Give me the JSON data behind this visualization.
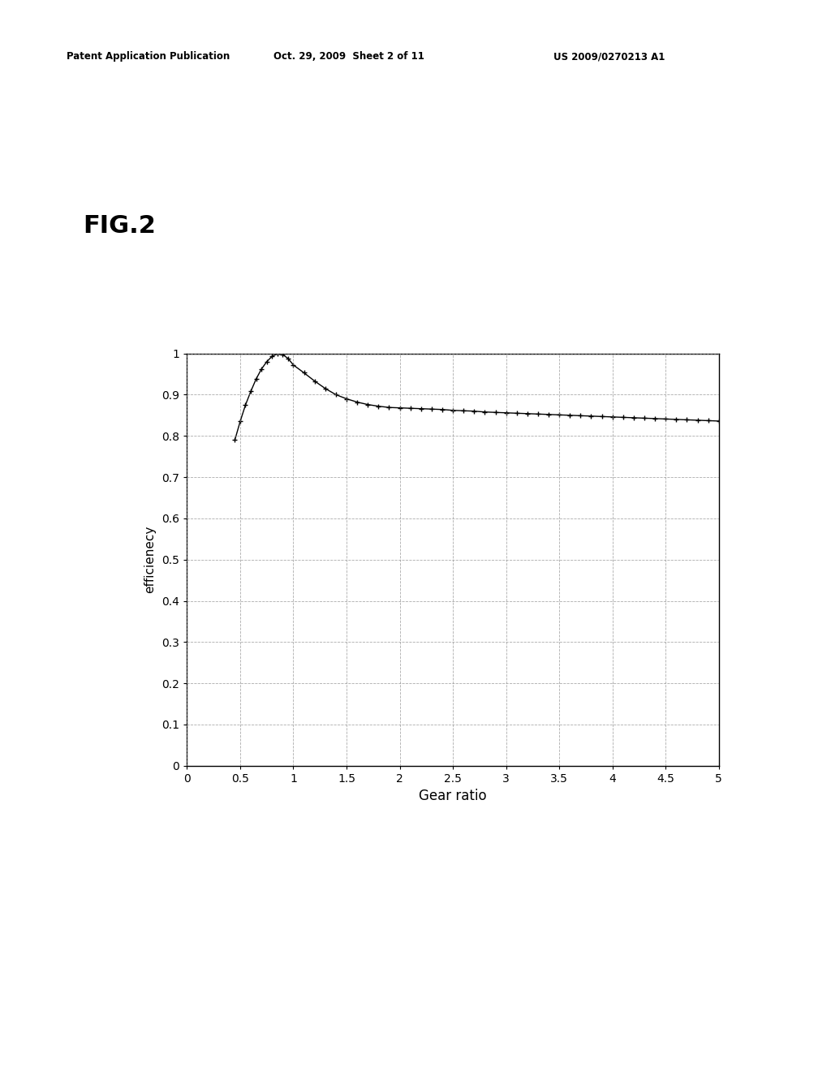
{
  "title_fig": "FIG.2",
  "header_left": "Patent Application Publication",
  "header_center": "Oct. 29, 2009  Sheet 2 of 11",
  "header_right": "US 2009/0270213 A1",
  "xlabel": "Gear ratio",
  "ylabel": "efficienecy",
  "xlim": [
    0,
    5
  ],
  "ylim": [
    0,
    1
  ],
  "xticks": [
    0,
    0.5,
    1,
    1.5,
    2,
    2.5,
    3,
    3.5,
    4,
    4.5,
    5
  ],
  "yticks": [
    0,
    0.1,
    0.2,
    0.3,
    0.4,
    0.5,
    0.6,
    0.7,
    0.8,
    0.9,
    1
  ],
  "background_color": "#ffffff",
  "line_color": "#000000",
  "grid_color": "#888888",
  "gear_ratios": [
    0.45,
    0.5,
    0.55,
    0.6,
    0.65,
    0.7,
    0.75,
    0.8,
    0.85,
    0.9,
    0.95,
    1.0,
    1.1,
    1.2,
    1.3,
    1.4,
    1.5,
    1.6,
    1.7,
    1.8,
    1.9,
    2.0,
    2.1,
    2.2,
    2.3,
    2.4,
    2.5,
    2.6,
    2.7,
    2.8,
    2.9,
    3.0,
    3.1,
    3.2,
    3.3,
    3.4,
    3.5,
    3.6,
    3.7,
    3.8,
    3.9,
    4.0,
    4.1,
    4.2,
    4.3,
    4.4,
    4.5,
    4.6,
    4.7,
    4.8,
    4.9,
    5.0
  ],
  "efficiency": [
    0.79,
    0.835,
    0.875,
    0.908,
    0.938,
    0.962,
    0.98,
    0.993,
    0.999,
    0.997,
    0.988,
    0.972,
    0.953,
    0.933,
    0.915,
    0.9,
    0.89,
    0.882,
    0.876,
    0.872,
    0.869,
    0.868,
    0.867,
    0.866,
    0.865,
    0.864,
    0.862,
    0.861,
    0.86,
    0.858,
    0.857,
    0.856,
    0.855,
    0.854,
    0.853,
    0.852,
    0.851,
    0.85,
    0.849,
    0.848,
    0.847,
    0.846,
    0.845,
    0.844,
    0.843,
    0.842,
    0.841,
    0.84,
    0.839,
    0.838,
    0.837,
    0.836
  ]
}
